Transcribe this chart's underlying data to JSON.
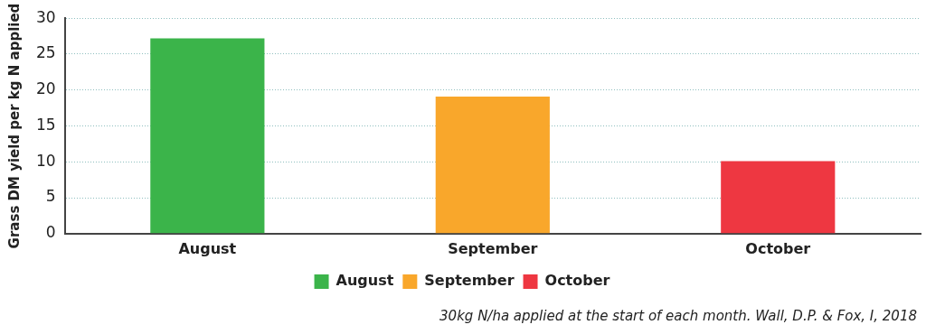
{
  "chart_data": {
    "type": "bar",
    "ylabel": "Grass DM yield per kg N applied",
    "categories": [
      "August",
      "September",
      "October"
    ],
    "series": [
      {
        "name": "August",
        "color": "#3bb44a",
        "values": [
          27.2,
          null,
          null
        ]
      },
      {
        "name": "September",
        "color": "#f9a72b",
        "values": [
          null,
          19.1,
          null
        ]
      },
      {
        "name": "October",
        "color": "#ee3741",
        "values": [
          null,
          null,
          10.1
        ]
      }
    ],
    "ylim": [
      0,
      30
    ],
    "yticks": [
      0,
      5,
      10,
      15,
      20,
      25,
      30
    ],
    "grid": "y",
    "legend": "bottom",
    "annotations": [
      "30kg N/ha applied at the start of each month. Wall, D.P. & Fox, I, 2018"
    ]
  }
}
